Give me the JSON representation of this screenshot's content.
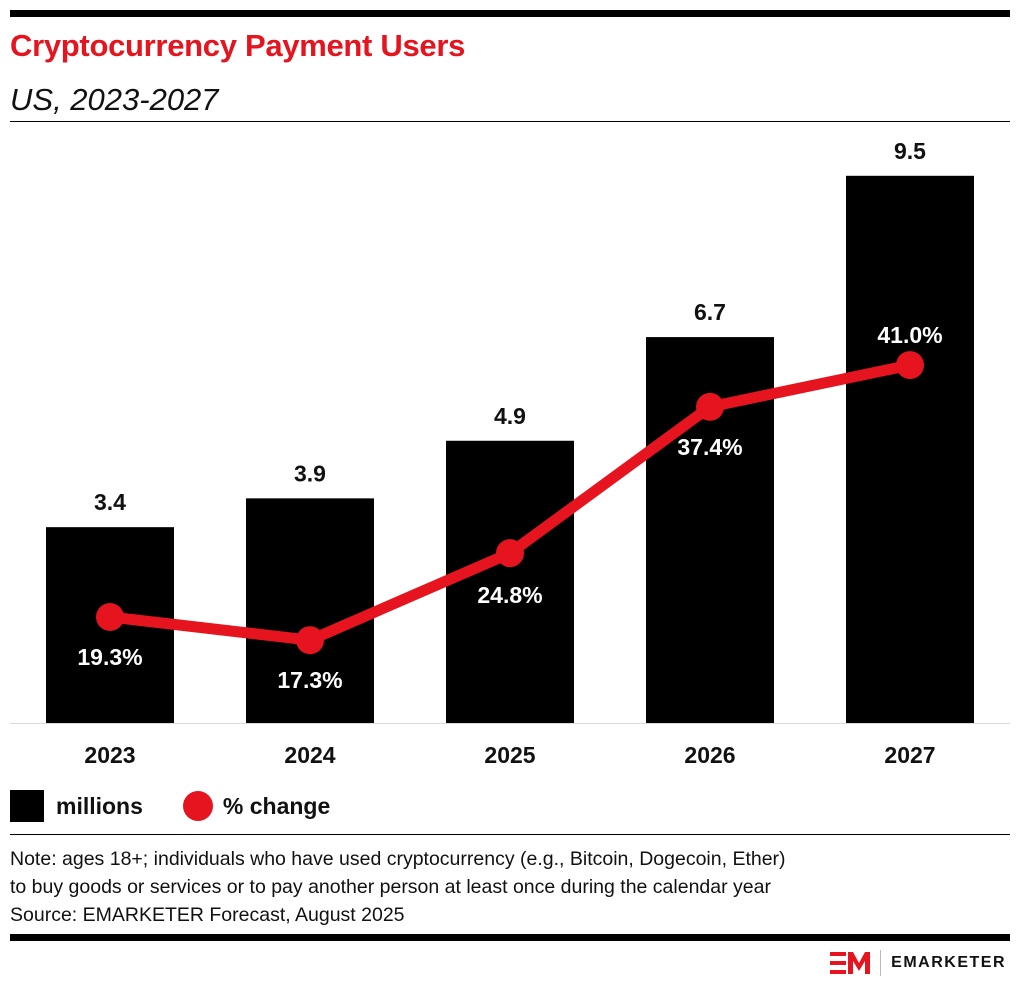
{
  "header": {
    "title": "Cryptocurrency Payment Users",
    "subtitle": "US, 2023-2027"
  },
  "chart_data": {
    "type": "bar",
    "categories": [
      "2023",
      "2024",
      "2025",
      "2026",
      "2027"
    ],
    "series": [
      {
        "name": "millions",
        "type": "bar",
        "values": [
          3.4,
          3.9,
          4.9,
          6.7,
          9.5
        ],
        "labels": [
          "3.4",
          "3.9",
          "4.9",
          "6.7",
          "9.5"
        ],
        "color": "#000000"
      },
      {
        "name": "% change",
        "type": "line",
        "values": [
          19.3,
          17.3,
          24.8,
          37.4,
          41.0
        ],
        "labels": [
          "19.3%",
          "17.3%",
          "24.8%",
          "37.4%",
          "41.0%"
        ],
        "color": "#e5141e"
      }
    ],
    "legend": "bottom-left",
    "grid": false
  },
  "legend": {
    "bar": "millions",
    "line": "% change"
  },
  "footer": {
    "note1": "Note: ages 18+; individuals who have used cryptocurrency (e.g., Bitcoin, Dogecoin, Ether)",
    "note2": "to buy goods or services or to pay another person at least once during the calendar year",
    "source": "Source: EMARKETER Forecast, August 2025",
    "logo": "EMARKETER"
  }
}
